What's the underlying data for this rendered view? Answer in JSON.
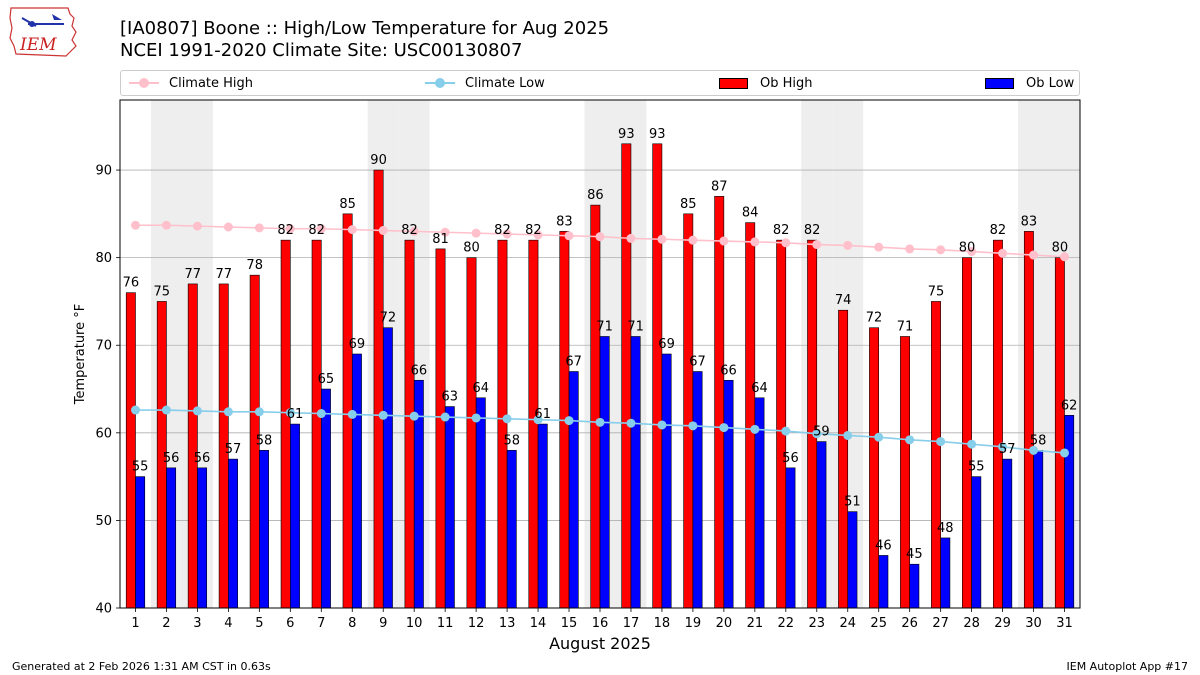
{
  "logo_text": "IEM",
  "title_line1": "[IA0807] Boone :: High/Low Temperature for Aug 2025",
  "title_line2": "NCEI 1991-2020 Climate Site: USC00130807",
  "legend": {
    "climate_high": "Climate High",
    "climate_low": "Climate Low",
    "ob_high": "Ob High",
    "ob_low": "Ob Low"
  },
  "colors": {
    "ob_high": "#ff0000",
    "ob_low": "#0000ff",
    "climate_high": "#ffc0cb",
    "climate_low": "#87ceeb",
    "weekend_band": "#eeeeee",
    "grid": "#b0b0b0"
  },
  "chart_data": {
    "type": "bar",
    "xlabel": "August 2025",
    "ylabel": "Temperature °F",
    "ylim": [
      40,
      98
    ],
    "yticks": [
      40,
      50,
      60,
      70,
      80,
      90
    ],
    "grid": "y",
    "legend_position": "top",
    "categories": [
      "1",
      "2",
      "3",
      "4",
      "5",
      "6",
      "7",
      "8",
      "9",
      "10",
      "11",
      "12",
      "13",
      "14",
      "15",
      "16",
      "17",
      "18",
      "19",
      "20",
      "21",
      "22",
      "23",
      "24",
      "25",
      "26",
      "27",
      "28",
      "29",
      "30",
      "31"
    ],
    "weekend_days": [
      2,
      3,
      9,
      10,
      16,
      17,
      23,
      24,
      30,
      31
    ],
    "series": [
      {
        "name": "Ob High",
        "kind": "bar",
        "values": [
          76,
          75,
          77,
          77,
          78,
          82,
          82,
          85,
          90,
          82,
          81,
          80,
          82,
          82,
          83,
          86,
          93,
          93,
          85,
          87,
          84,
          82,
          82,
          74,
          72,
          71,
          75,
          80,
          82,
          83,
          80
        ]
      },
      {
        "name": "Ob Low",
        "kind": "bar",
        "values": [
          55,
          56,
          56,
          57,
          58,
          61,
          65,
          69,
          72,
          66,
          63,
          64,
          58,
          61,
          67,
          71,
          71,
          69,
          67,
          66,
          64,
          56,
          59,
          51,
          46,
          45,
          48,
          55,
          57,
          58,
          62
        ]
      },
      {
        "name": "Climate High",
        "kind": "line",
        "values": [
          83.7,
          83.7,
          83.6,
          83.5,
          83.4,
          83.3,
          83.3,
          83.2,
          83.1,
          83.0,
          82.9,
          82.8,
          82.7,
          82.6,
          82.5,
          82.4,
          82.2,
          82.1,
          82.0,
          81.9,
          81.8,
          81.7,
          81.5,
          81.4,
          81.2,
          81.0,
          80.9,
          80.7,
          80.5,
          80.3,
          80.1
        ]
      },
      {
        "name": "Climate Low",
        "kind": "line",
        "values": [
          62.6,
          62.6,
          62.5,
          62.4,
          62.4,
          62.3,
          62.2,
          62.1,
          62.0,
          61.9,
          61.8,
          61.7,
          61.6,
          61.5,
          61.4,
          61.2,
          61.1,
          60.9,
          60.8,
          60.6,
          60.4,
          60.2,
          59.9,
          59.7,
          59.5,
          59.2,
          59.0,
          58.7,
          58.4,
          58.0,
          57.7
        ]
      }
    ]
  },
  "footer": {
    "generated": "Generated at 2 Feb 2026 1:31 AM CST in 0.63s",
    "app": "IEM Autoplot App #17"
  }
}
